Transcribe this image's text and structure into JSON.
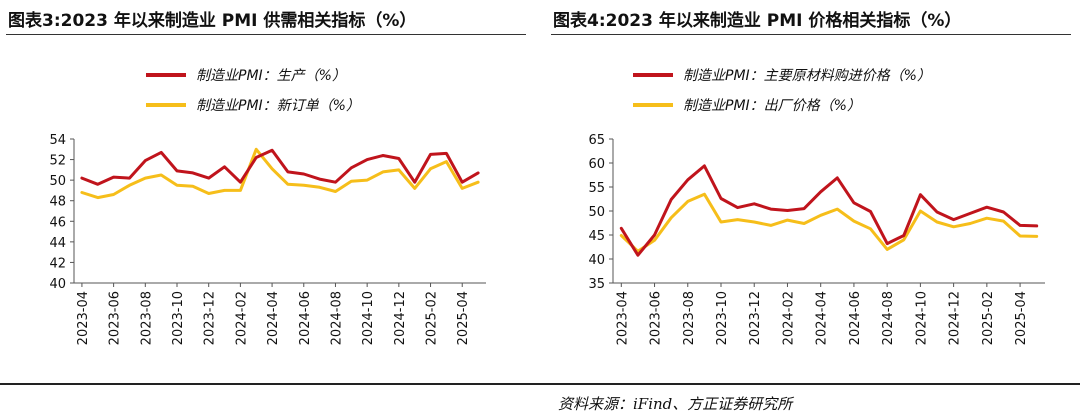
{
  "panels": {
    "left": {
      "title": "图表3:2023 年以来制造业 PMI 供需相关指标（%）"
    },
    "right": {
      "title": "图表4:2023 年以来制造业 PMI 价格相关指标（%）"
    }
  },
  "source": "资料来源：iFind、方正证券研究所",
  "colors": {
    "series1": "#c0141c",
    "series2": "#f6be1a",
    "axis": "#555555"
  },
  "chart_data": [
    {
      "type": "line",
      "categories": [
        "2023-04",
        "2023-05",
        "2023-06",
        "2023-07",
        "2023-08",
        "2023-09",
        "2023-10",
        "2023-11",
        "2023-12",
        "2024-01",
        "2024-02",
        "2024-03",
        "2024-04",
        "2024-05",
        "2024-06",
        "2024-07",
        "2024-08",
        "2024-09",
        "2024-10",
        "2024-11",
        "2024-12",
        "2025-01",
        "2025-02",
        "2025-03",
        "2025-04",
        "2025-05"
      ],
      "tick_labels": [
        "2023-04",
        "2023-06",
        "2023-08",
        "2023-10",
        "2023-12",
        "2024-02",
        "2024-04",
        "2024-06",
        "2024-08",
        "2024-10",
        "2024-12",
        "2025-02",
        "2025-04"
      ],
      "series": [
        {
          "name": "制造业PMI：生产（%）",
          "color": "#c0141c",
          "values": [
            50.2,
            49.6,
            50.3,
            50.2,
            51.9,
            52.7,
            50.9,
            50.7,
            50.2,
            51.3,
            49.8,
            52.2,
            52.9,
            50.8,
            50.6,
            50.1,
            49.8,
            51.2,
            52.0,
            52.4,
            52.1,
            49.8,
            52.5,
            52.6,
            49.8,
            50.7
          ]
        },
        {
          "name": "制造业PMI：新订单（%）",
          "color": "#f6be1a",
          "values": [
            48.8,
            48.3,
            48.6,
            49.5,
            50.2,
            50.5,
            49.5,
            49.4,
            48.7,
            49.0,
            49.0,
            53.0,
            51.1,
            49.6,
            49.5,
            49.3,
            48.9,
            49.9,
            50.0,
            50.8,
            51.0,
            49.2,
            51.1,
            51.8,
            49.2,
            49.8
          ]
        }
      ],
      "ylim": [
        40,
        54
      ],
      "yticks": [
        40,
        42,
        44,
        46,
        48,
        50,
        52,
        54
      ],
      "legend": "top-center",
      "grid": false
    },
    {
      "type": "line",
      "categories": [
        "2023-04",
        "2023-05",
        "2023-06",
        "2023-07",
        "2023-08",
        "2023-09",
        "2023-10",
        "2023-11",
        "2023-12",
        "2024-01",
        "2024-02",
        "2024-03",
        "2024-04",
        "2024-05",
        "2024-06",
        "2024-07",
        "2024-08",
        "2024-09",
        "2024-10",
        "2024-11",
        "2024-12",
        "2025-01",
        "2025-02",
        "2025-03",
        "2025-04",
        "2025-05"
      ],
      "tick_labels": [
        "2023-04",
        "2023-06",
        "2023-08",
        "2023-10",
        "2023-12",
        "2024-02",
        "2024-04",
        "2024-06",
        "2024-08",
        "2024-10",
        "2024-12",
        "2025-02",
        "2025-04"
      ],
      "series": [
        {
          "name": "制造业PMI：主要原材料购进价格（%）",
          "color": "#c0141c",
          "values": [
            46.4,
            40.8,
            45.0,
            52.4,
            56.5,
            59.4,
            52.6,
            50.7,
            51.5,
            50.4,
            50.1,
            50.5,
            54.0,
            56.9,
            51.7,
            49.9,
            43.2,
            44.9,
            53.4,
            49.8,
            48.2,
            49.5,
            50.8,
            49.8,
            47.0,
            46.9
          ]
        },
        {
          "name": "制造业PMI：出厂价格（%）",
          "color": "#f6be1a",
          "values": [
            44.9,
            41.6,
            43.9,
            48.6,
            52.0,
            53.5,
            47.7,
            48.2,
            47.7,
            47.0,
            48.1,
            47.4,
            49.1,
            50.4,
            47.9,
            46.3,
            42.0,
            44.0,
            50.0,
            47.7,
            46.7,
            47.4,
            48.5,
            47.9,
            44.8,
            44.7
          ]
        }
      ],
      "ylim": [
        35,
        65
      ],
      "yticks": [
        35,
        40,
        45,
        50,
        55,
        60,
        65
      ],
      "legend": "top-center",
      "grid": false
    }
  ]
}
